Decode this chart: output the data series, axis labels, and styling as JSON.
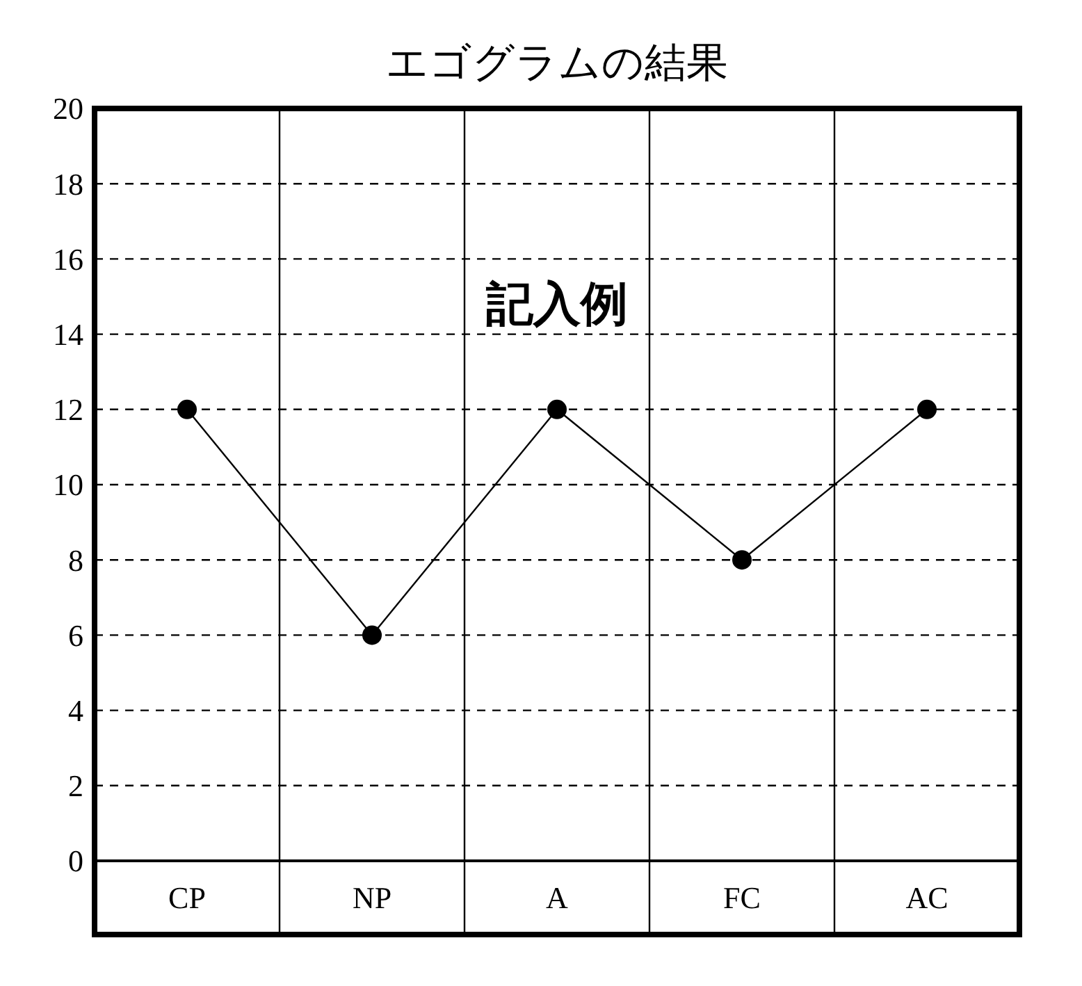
{
  "chart_data": {
    "type": "line",
    "title": "エゴグラムの結果",
    "categories": [
      "CP",
      "NP",
      "A",
      "FC",
      "AC"
    ],
    "values": [
      12,
      6,
      12,
      8,
      12
    ],
    "color": "#000000",
    "ylim": [
      0,
      20
    ],
    "yticks": [
      0,
      2,
      4,
      6,
      8,
      10,
      12,
      14,
      16,
      18,
      20
    ],
    "grid": "y",
    "marker": "circle",
    "line_style": "solid",
    "annotations": [
      "記入例"
    ]
  }
}
